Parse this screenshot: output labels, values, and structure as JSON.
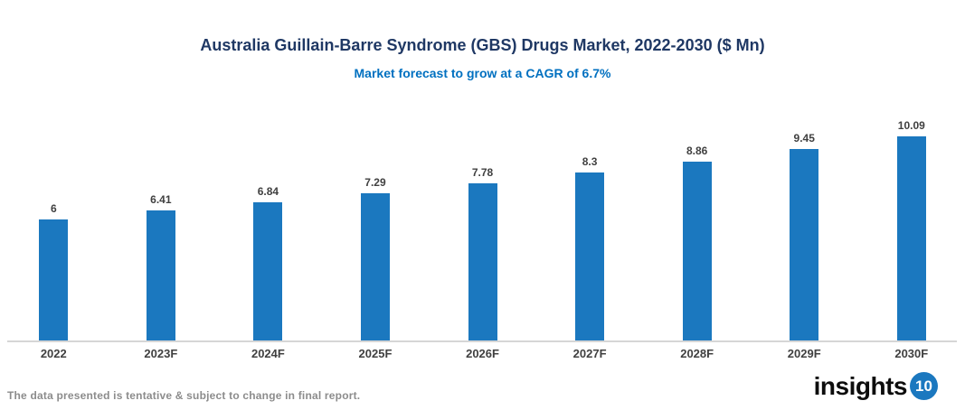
{
  "chart_data": {
    "type": "bar",
    "title": "Australia Guillain-Barre Syndrome (GBS) Drugs Market, 2022-2030 ($ Mn)",
    "subtitle": "Market forecast to grow at a CAGR of 6.7%",
    "categories": [
      "2022",
      "2023F",
      "2024F",
      "2025F",
      "2026F",
      "2027F",
      "2028F",
      "2029F",
      "2030F"
    ],
    "values": [
      6,
      6.41,
      6.84,
      7.29,
      7.78,
      8.3,
      8.86,
      9.45,
      10.09
    ],
    "xlabel": "",
    "ylabel": "",
    "ylim": [
      0,
      12
    ],
    "grid": false,
    "legend": false,
    "bar_color": "#1B78BF",
    "value_label_color": "#404040",
    "axis_line_color": "#D6D6D6"
  },
  "colors": {
    "title": "#1F3864",
    "subtitle": "#0070C0",
    "category_label": "#404040",
    "footer_text": "#8C8C8C",
    "logo_text": "#0d0d0d",
    "logo_badge_bg": "#1B78BF"
  },
  "footer": {
    "disclaimer": "The data presented is tentative & subject to change in final report.",
    "logo_text": "insights",
    "logo_badge": "10"
  }
}
